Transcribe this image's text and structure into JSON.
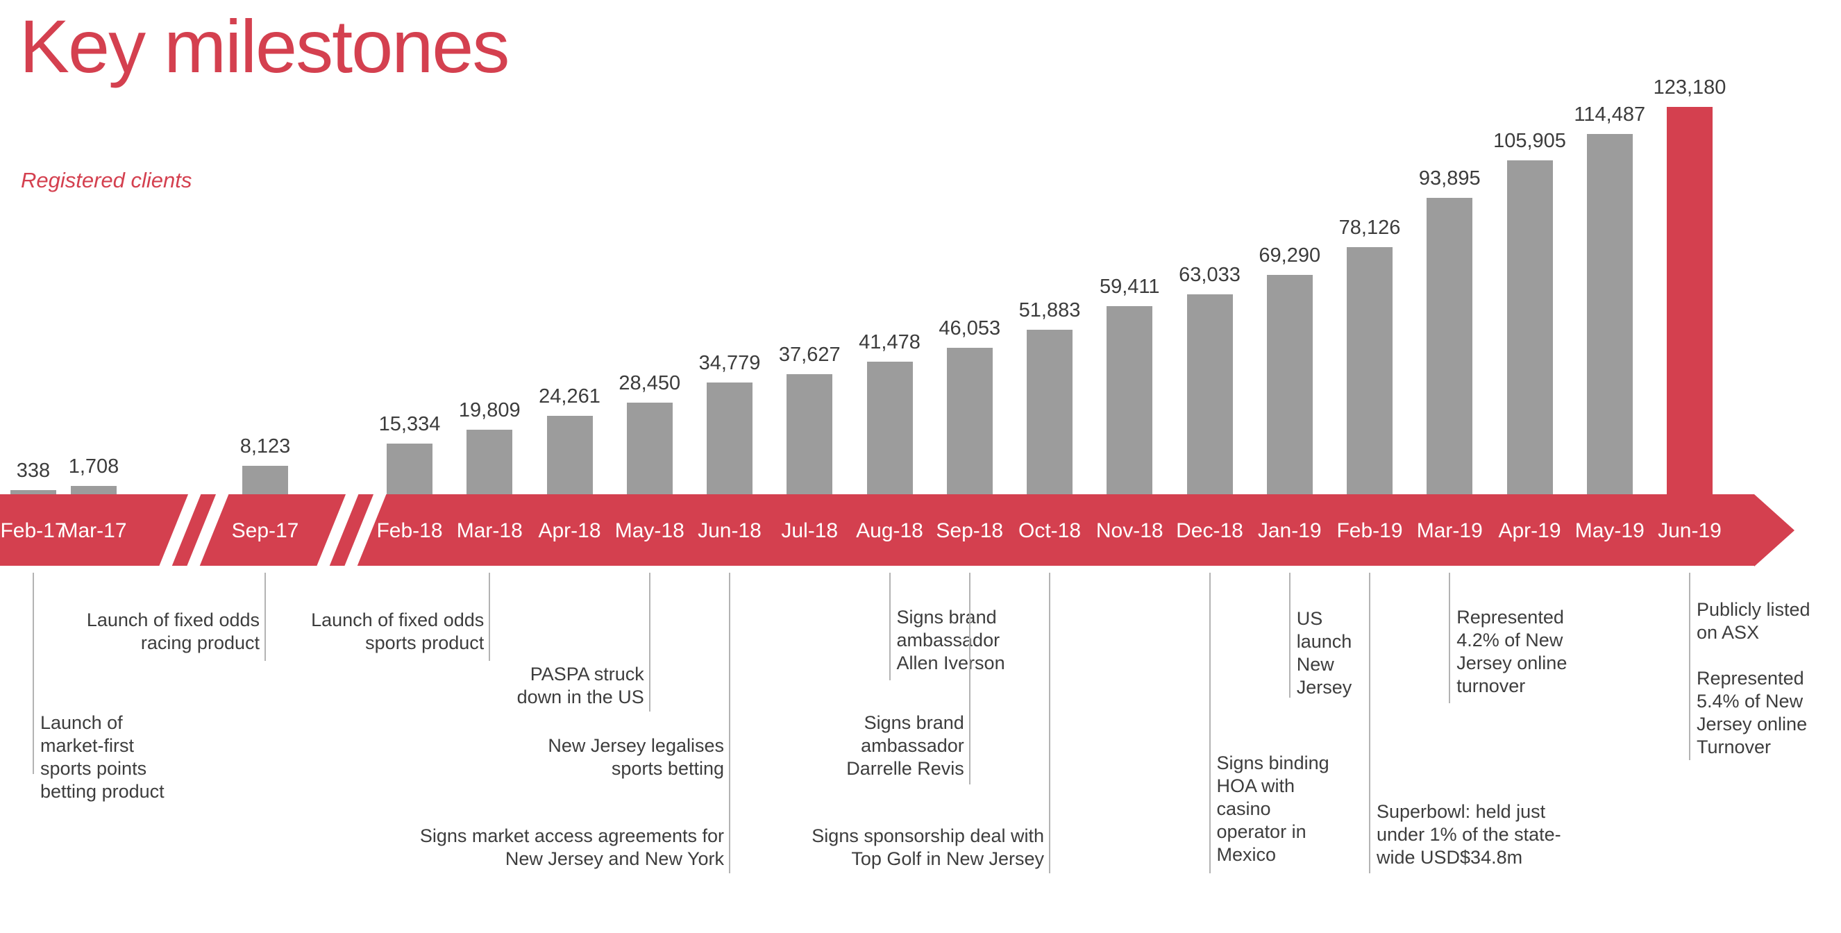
{
  "title": "Key milestones",
  "subtitle": "Registered clients",
  "colors": {
    "accent_red": "#d4404f",
    "bar_gray": "#9c9c9c",
    "value_label_text": "#3c3c3c",
    "month_label_text": "#ffffff",
    "annotation_text": "#3d3d3d",
    "leader_line": "#b3b3b3"
  },
  "chart_data": {
    "type": "bar",
    "title": "Key milestones",
    "subtitle": "Registered clients",
    "ylabel": "Registered clients",
    "xlabel": "",
    "ylim": [
      0,
      123180
    ],
    "grid": false,
    "legend": "none",
    "categories": [
      "Feb-17",
      "Mar-17",
      "Sep-17",
      "Feb-18",
      "Mar-18",
      "Apr-18",
      "May-18",
      "Jun-18",
      "Jul-18",
      "Aug-18",
      "Sep-18",
      "Oct-18",
      "Nov-18",
      "Dec-18",
      "Jan-19",
      "Feb-19",
      "Mar-19",
      "Apr-19",
      "May-19",
      "Jun-19"
    ],
    "values": [
      338,
      1708,
      8123,
      15334,
      19809,
      24261,
      28450,
      34779,
      37627,
      41478,
      46053,
      51883,
      59411,
      63033,
      69290,
      78126,
      93895,
      105905,
      114487,
      123180
    ],
    "value_labels": [
      "338",
      "1,708",
      "8,123",
      "15,334",
      "19,809",
      "24,261",
      "28,450",
      "34,779",
      "37,627",
      "41,478",
      "46,053",
      "51,883",
      "59,411",
      "63,033",
      "69,290",
      "78,126",
      "93,895",
      "105,905",
      "114,487",
      "123,180"
    ],
    "bar_color": "#9c9c9c",
    "highlight_category": "Jun-19",
    "highlight_color": "#d4404f",
    "axis_style": "red timeline arrow with right-pointing head",
    "axis_breaks": [
      [
        "Mar-17",
        "Sep-17"
      ],
      [
        "Sep-17",
        "Feb-18"
      ]
    ],
    "milestones": [
      {
        "month": "Feb-17",
        "align": "left",
        "text": "Launch of\nmarket-first\nsports points\nbetting product"
      },
      {
        "month": "Sep-17",
        "align": "right",
        "text": "Launch of fixed odds\nracing product"
      },
      {
        "month": "Mar-18",
        "align": "right",
        "text": "Launch of fixed odds\nsports product"
      },
      {
        "month": "May-18",
        "align": "right",
        "text": "PASPA struck\ndown in the US"
      },
      {
        "month": "Jun-18",
        "align": "right",
        "text": "New Jersey legalises\nsports betting"
      },
      {
        "month": "Jun-18",
        "align": "right",
        "text": "Signs market access agreements for\nNew Jersey and New York"
      },
      {
        "month": "Aug-18",
        "align": "left",
        "text": "Signs brand\nambassador\nAllen Iverson"
      },
      {
        "month": "Sep-18",
        "align": "right",
        "text": "Signs brand\nambassador\nDarrelle Revis"
      },
      {
        "month": "Oct-18",
        "align": "right",
        "text": "Signs sponsorship deal with\nTop Golf in New Jersey"
      },
      {
        "month": "Dec-18",
        "align": "left",
        "text": "Signs binding\nHOA with\ncasino\noperator in\nMexico"
      },
      {
        "month": "Jan-19",
        "align": "left",
        "text": "US\nlaunch\nNew\nJersey"
      },
      {
        "month": "Feb-19",
        "align": "left",
        "text": "Superbowl: held just\nunder 1% of the state-\nwide USD$34.8m"
      },
      {
        "month": "Mar-19",
        "align": "left",
        "text": "Represented\n4.2% of New\nJersey online\nturnover"
      },
      {
        "month": "Jun-19",
        "align": "left",
        "text": "Publicly listed\non ASX\n\nRepresented\n5.4% of New\nJersey online\nTurnover"
      }
    ]
  }
}
